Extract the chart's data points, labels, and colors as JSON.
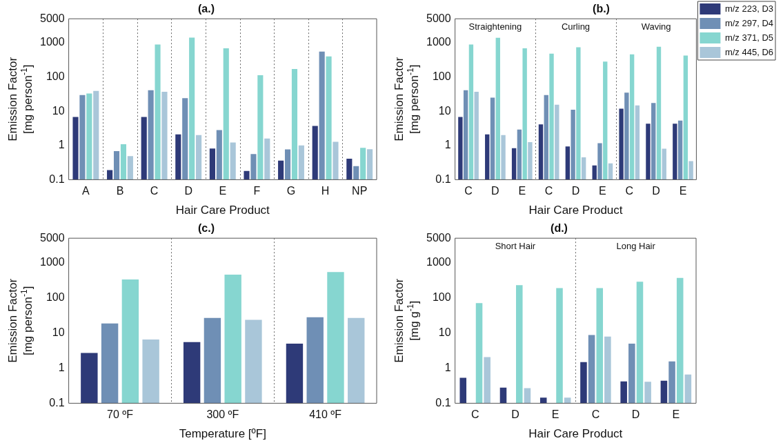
{
  "chart_data": [
    {
      "type": "bar",
      "title": "(a.)",
      "xlabel": "Hair Care Product",
      "ylabel": "Emission Factor\n[mg person$^{-1}$]",
      "categories": [
        "A",
        "B",
        "C",
        "D",
        "E",
        "F",
        "G",
        "H",
        "NP"
      ],
      "log": true,
      "ylim": [
        0.1,
        5000
      ],
      "yticks": [
        0.1,
        1,
        10,
        100,
        1000,
        5000
      ],
      "grid": "x",
      "series": [
        {
          "color": "#2e3a78",
          "values": [
            6.8,
            0.19,
            6.8,
            2.1,
            0.81,
            0.18,
            0.36,
            3.7,
            0.41
          ]
        },
        {
          "color": "#6f8fb5",
          "values": [
            29.5,
            0.68,
            41,
            24,
            2.8,
            0.56,
            0.77,
            550,
            0.25
          ]
        },
        {
          "color": "#86d6d0",
          "values": [
            33,
            1.08,
            890,
            1410,
            690,
            112,
            170,
            400,
            0.85
          ]
        },
        {
          "color": "#a9c6d9",
          "values": [
            39,
            0.49,
            37,
            2.0,
            1.22,
            1.6,
            1.0,
            1.27,
            0.78
          ]
        }
      ]
    },
    {
      "type": "bar",
      "title": "(b.)",
      "xlabel": "Hair Care Product",
      "ylabel": "Emission Factor\n[mg person$^{-1}$]",
      "categories": [
        "C",
        "D",
        "E",
        "C",
        "D",
        "E",
        "C",
        "D",
        "E"
      ],
      "log": true,
      "ylim": [
        0.1,
        5000
      ],
      "yticks": [
        0.1,
        1,
        10,
        100,
        1000,
        5000
      ],
      "legend": "top right",
      "annotations": [
        "Straightening",
        "Curling",
        "Waving"
      ],
      "series": [
        {
          "name": "m/z 223, D3",
          "color": "#2e3a78",
          "values": [
            6.8,
            2.1,
            0.83,
            4.1,
            0.93,
            0.26,
            11.8,
            4.3,
            4.3
          ]
        },
        {
          "name": "m/z 297, D4",
          "color": "#6f8fb5",
          "values": [
            41,
            25,
            2.9,
            29.5,
            11,
            1.17,
            35,
            17.4,
            5.3
          ]
        },
        {
          "name": "m/z 371, D5",
          "color": "#86d6d0",
          "values": [
            890,
            1400,
            690,
            480,
            740,
            280,
            455,
            760,
            420
          ]
        },
        {
          "name": "m/z 445, D6",
          "color": "#a9c6d9",
          "values": [
            37,
            2.0,
            1.25,
            15.5,
            0.45,
            0.3,
            14.8,
            0.8,
            0.35
          ]
        }
      ]
    },
    {
      "type": "bar",
      "title": "(c.)",
      "xlabel": "Temperature [ºF]",
      "ylabel": "Emission Factor\n[mg person$^{-1}$]",
      "categories": [
        "70 ºF",
        "300 ºF",
        "410 ºF"
      ],
      "log": true,
      "ylim": [
        0.1,
        5000
      ],
      "yticks": [
        0.1,
        1,
        10,
        100,
        1000,
        5000
      ],
      "grid": "x",
      "series": [
        {
          "color": "#2e3a78",
          "values": [
            2.7,
            5.5,
            5.0
          ]
        },
        {
          "color": "#6f8fb5",
          "values": [
            18.6,
            27,
            28
          ]
        },
        {
          "color": "#86d6d0",
          "values": [
            335,
            457,
            545
          ]
        },
        {
          "color": "#a9c6d9",
          "values": [
            6.5,
            23.8,
            27
          ]
        }
      ]
    },
    {
      "type": "bar",
      "title": "(d.)",
      "xlabel": "Hair Care Product",
      "ylabel": "Emission Factor\n[mg g$^{-1}$]",
      "categories": [
        "C",
        "D",
        "E",
        "C",
        "D",
        "E"
      ],
      "log": true,
      "ylim": [
        0.1,
        5000
      ],
      "yticks": [
        0.1,
        1,
        10,
        100,
        1000,
        5000
      ],
      "annotations": [
        "Short Hair",
        "Long Hair"
      ],
      "series": [
        {
          "color": "#2e3a78",
          "values": [
            0.53,
            0.28,
            0.145,
            1.48,
            0.42,
            0.44
          ]
        },
        {
          "color": "#6f8fb5",
          "values": [
            null,
            null,
            null,
            8.8,
            5.0,
            1.56
          ]
        },
        {
          "color": "#86d6d0",
          "values": [
            71,
            229,
            190,
            190,
            290,
            370
          ]
        },
        {
          "color": "#a9c6d9",
          "values": [
            2.07,
            0.27,
            0.145,
            7.9,
            0.41,
            0.66
          ]
        }
      ]
    }
  ]
}
